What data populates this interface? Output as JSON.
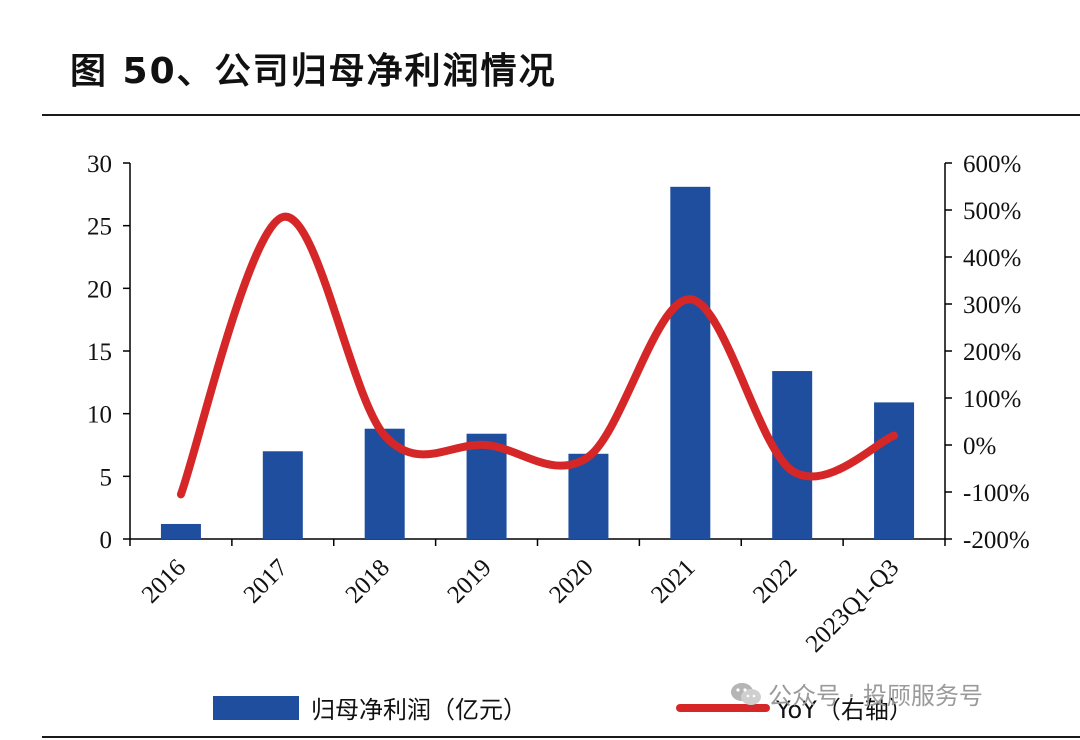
{
  "figure": {
    "title": "图 50、公司归母净利润情况"
  },
  "watermark": {
    "text": "公众号 · 投顾服务号",
    "icon": "wechat-icon"
  },
  "colors": {
    "bar": "#1f4e9e",
    "line": "#d62728",
    "axis": "#000000"
  },
  "chart_data": {
    "type": "bar",
    "categories": [
      "2016",
      "2017",
      "2018",
      "2019",
      "2020",
      "2021",
      "2022",
      "2023Q1-Q3"
    ],
    "series": [
      {
        "name": "归母净利润（亿元）",
        "type": "bar",
        "axis": "left",
        "values": [
          1.2,
          7.0,
          8.8,
          8.4,
          6.8,
          28.1,
          13.4,
          10.9
        ]
      },
      {
        "name": "YoY（右轴）",
        "type": "line",
        "smooth": true,
        "axis": "right",
        "values": [
          -105,
          485,
          20,
          0,
          -25,
          310,
          -55,
          20
        ]
      }
    ],
    "y_left": {
      "ylim": [
        0,
        30
      ],
      "ticks": [
        0,
        5,
        10,
        15,
        20,
        25,
        30
      ],
      "tick_labels": [
        "0",
        "5",
        "10",
        "15",
        "20",
        "25",
        "30"
      ]
    },
    "y_right": {
      "ylim": [
        -200,
        600
      ],
      "ticks": [
        -200,
        -100,
        0,
        100,
        200,
        300,
        400,
        500,
        600
      ],
      "tick_labels": [
        "-200%",
        "-100%",
        "0%",
        "100%",
        "200%",
        "300%",
        "400%",
        "500%",
        "600%"
      ]
    },
    "x_tick_rotation": -45,
    "grid": false,
    "legend_position": "bottom"
  }
}
